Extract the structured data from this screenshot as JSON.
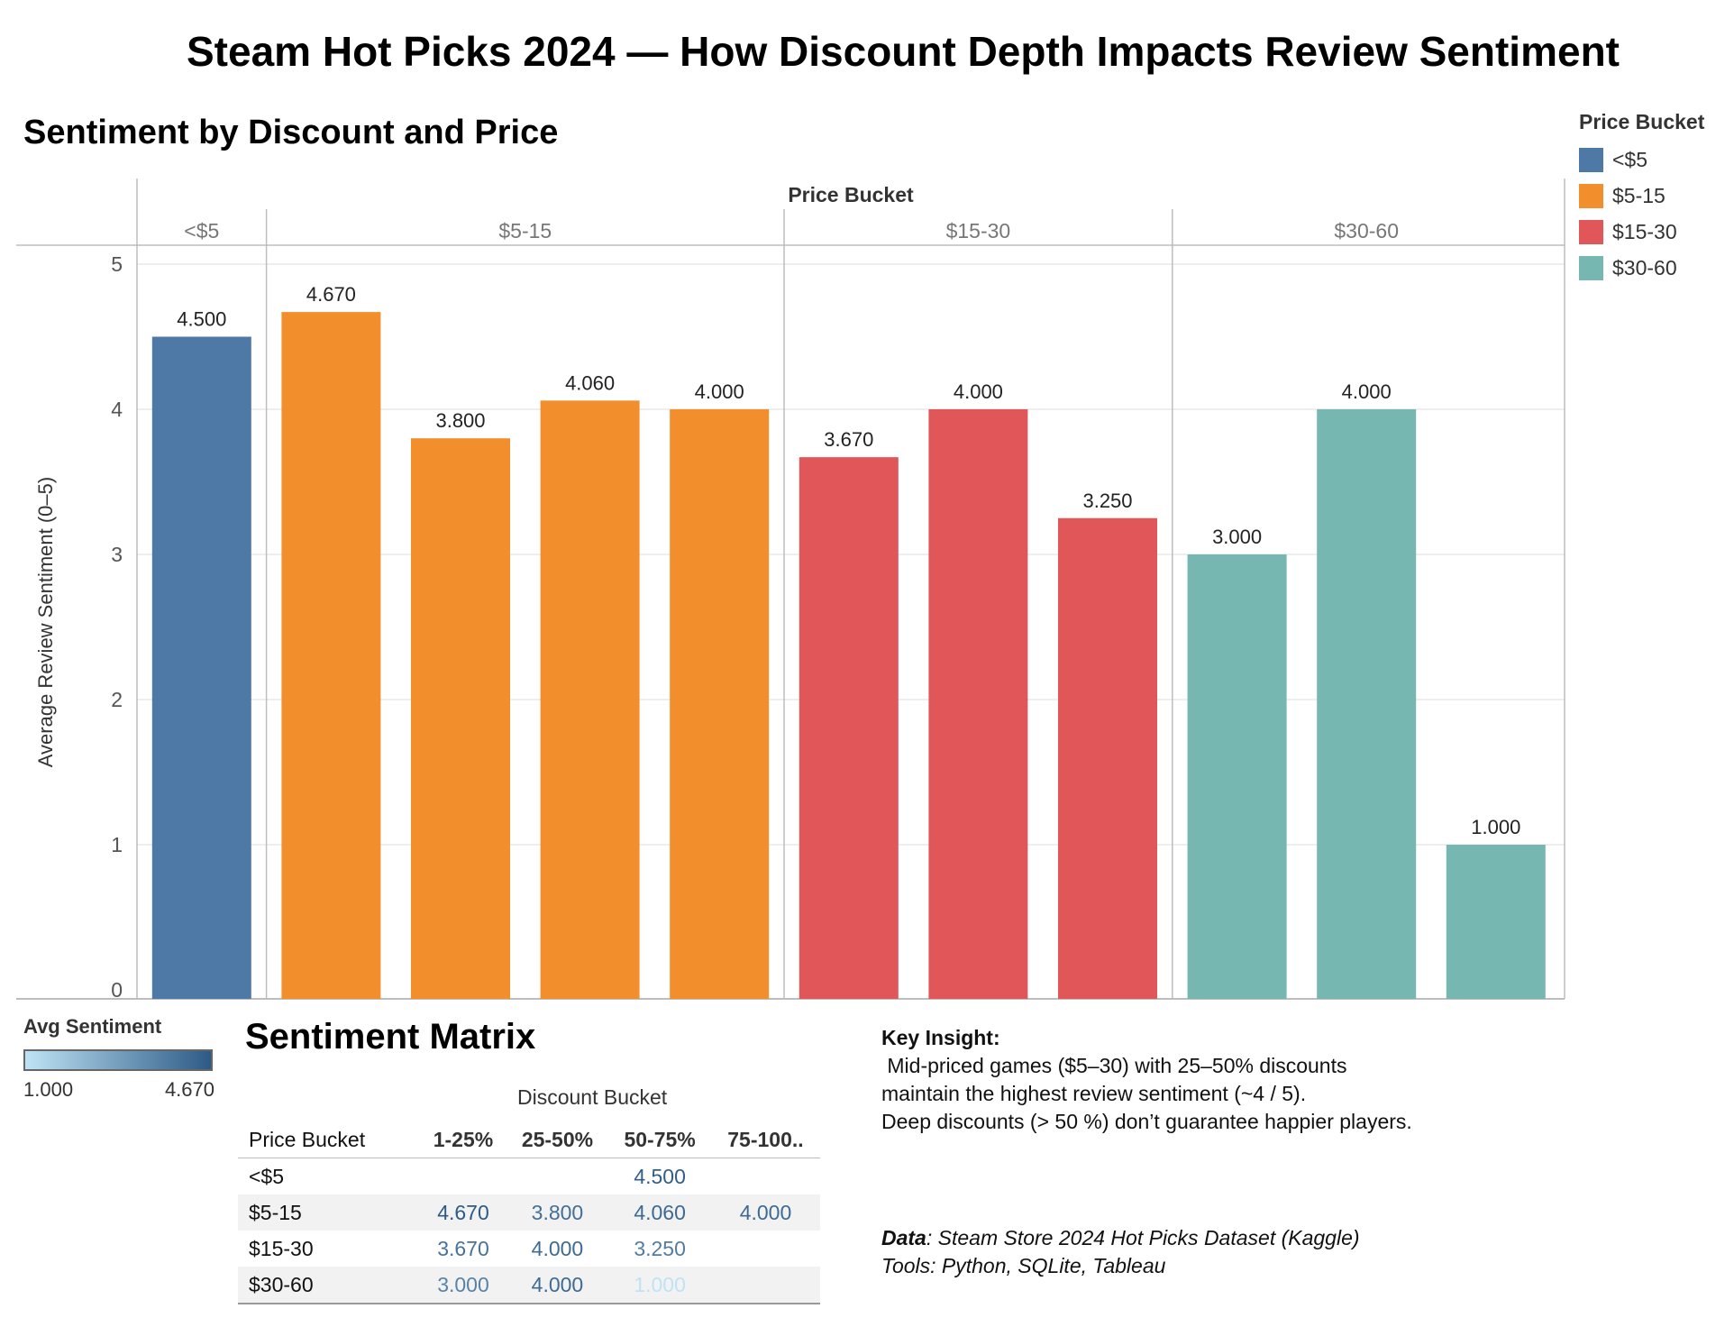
{
  "title": "Steam Hot Picks 2024 — How Discount Depth Impacts Review Sentiment",
  "chart_title": "Sentiment by Discount and Price",
  "colors": {
    "<$5": "#4e79a7",
    "$5-15": "#f28e2b",
    "$15-30": "#e15759",
    "$30-60": "#76b7b2",
    "grid": "#e8e8e8",
    "axis": "#bdbdbd"
  },
  "chart_data": {
    "type": "bar",
    "column_header": "Price Bucket",
    "ylabel": "Average Review Sentiment (0–5)",
    "ylim": [
      0,
      5
    ],
    "yticks": [
      0,
      1,
      2,
      3,
      4,
      5
    ],
    "groups": [
      {
        "name": "<$5",
        "values": [
          4.5
        ]
      },
      {
        "name": "$5-15",
        "values": [
          4.67,
          3.8,
          4.06,
          4.0
        ]
      },
      {
        "name": "$15-30",
        "values": [
          3.67,
          4.0,
          3.25
        ]
      },
      {
        "name": "$30-60",
        "values": [
          3.0,
          4.0,
          1.0
        ]
      }
    ],
    "value_labels": {
      "<$5": [
        "4.500"
      ],
      "$5-15": [
        "4.670",
        "3.800",
        "4.060",
        "4.000"
      ],
      "$15-30": [
        "3.670",
        "4.000",
        "3.250"
      ],
      "$30-60": [
        "3.000",
        "4.000",
        "1.000"
      ]
    },
    "grid": true
  },
  "legend": {
    "title": "Price Bucket",
    "items": [
      "<$5",
      "$5-15",
      "$15-30",
      "$30-60"
    ]
  },
  "color_legend": {
    "title": "Avg Sentiment",
    "min": "1.000",
    "max": "4.670"
  },
  "matrix": {
    "title": "Sentiment Matrix",
    "column_group": "Discount Bucket",
    "row_header": "Price Bucket",
    "columns": [
      "1-25%",
      "25-50%",
      "50-75%",
      "75-100.."
    ],
    "rows": [
      {
        "label": "<$5",
        "cells": [
          "",
          "",
          "4.500",
          ""
        ],
        "values": [
          null,
          null,
          4.5,
          null
        ]
      },
      {
        "label": "$5-15",
        "cells": [
          "4.670",
          "3.800",
          "4.060",
          "4.000"
        ],
        "values": [
          4.67,
          3.8,
          4.06,
          4.0
        ]
      },
      {
        "label": "$15-30",
        "cells": [
          "3.670",
          "4.000",
          "3.250",
          ""
        ],
        "values": [
          3.67,
          4.0,
          3.25,
          null
        ]
      },
      {
        "label": "$30-60",
        "cells": [
          "3.000",
          "4.000",
          "1.000",
          ""
        ],
        "values": [
          3.0,
          4.0,
          1.0,
          null
        ]
      }
    ]
  },
  "insight": {
    "title": "Key Insight:",
    "lines": [
      " Mid-priced games ($5–30) with 25–50% discounts",
      "maintain the highest review sentiment (~4 / 5).",
      "Deep discounts (> 50 %) don’t guarantee happier players."
    ]
  },
  "source": {
    "lead": "Data",
    "rest": ": Steam Store 2024 Hot Picks Dataset (Kaggle)",
    "tools": "Tools: Python, SQLite, Tableau"
  }
}
